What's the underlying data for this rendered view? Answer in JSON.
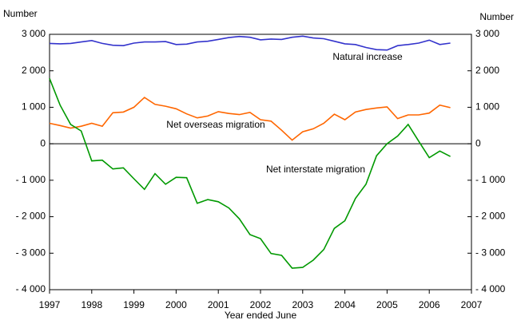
{
  "chart_data": {
    "type": "line",
    "y_label_left": "Number",
    "y_label_right": "Number",
    "x_label": "Year ended June",
    "xlim": [
      1997,
      2007
    ],
    "xticks": [
      1997,
      1998,
      1999,
      2000,
      2001,
      2002,
      2003,
      2004,
      2005,
      2006,
      2007
    ],
    "ylim": [
      -4000,
      3000
    ],
    "yticks": [
      {
        "value": -4000,
        "label": "- 4 000"
      },
      {
        "value": -3000,
        "label": "- 3 000"
      },
      {
        "value": -2000,
        "label": "- 2 000"
      },
      {
        "value": -1000,
        "label": "- 1 000"
      },
      0,
      {
        "value": 1000,
        "label": "1 000"
      },
      {
        "value": 2000,
        "label": "2 000"
      },
      {
        "value": 3000,
        "label": "3 000"
      }
    ],
    "grid": false,
    "x": [
      1997,
      1997.25,
      1997.5,
      1997.75,
      1998,
      1998.25,
      1998.5,
      1998.75,
      1999,
      1999.25,
      1999.5,
      1999.75,
      2000,
      2000.25,
      2000.5,
      2000.75,
      2001,
      2001.25,
      2001.5,
      2001.75,
      2002,
      2002.25,
      2002.5,
      2002.75,
      2003,
      2003.25,
      2003.5,
      2003.75,
      2004,
      2004.25,
      2004.5,
      2004.75,
      2005,
      2005.25,
      2005.5,
      2005.75,
      2006,
      2006.25,
      2006.5
    ],
    "series": [
      {
        "name": "Natural increase",
        "color": "#3333cc",
        "values": [
          2750,
          2740,
          2750,
          2790,
          2830,
          2750,
          2700,
          2690,
          2760,
          2790,
          2790,
          2800,
          2720,
          2730,
          2790,
          2810,
          2860,
          2910,
          2940,
          2920,
          2850,
          2870,
          2860,
          2920,
          2950,
          2900,
          2880,
          2810,
          2740,
          2720,
          2640,
          2580,
          2570,
          2690,
          2720,
          2760,
          2840,
          2720,
          2760
        ]
      },
      {
        "name": "Net overseas migration",
        "color": "#ff6600",
        "values": [
          560,
          500,
          430,
          480,
          560,
          480,
          850,
          870,
          1000,
          1270,
          1080,
          1030,
          960,
          820,
          710,
          760,
          880,
          830,
          800,
          860,
          660,
          620,
          370,
          100,
          330,
          410,
          560,
          810,
          660,
          870,
          940,
          980,
          1010,
          690,
          790,
          790,
          840,
          1060,
          990
        ]
      },
      {
        "name": "Net interstate migration",
        "color": "#009900",
        "values": [
          1790,
          1060,
          530,
          350,
          -470,
          -450,
          -690,
          -660,
          -960,
          -1250,
          -820,
          -1110,
          -920,
          -930,
          -1630,
          -1530,
          -1590,
          -1760,
          -2060,
          -2490,
          -2600,
          -3010,
          -3060,
          -3410,
          -3390,
          -3190,
          -2900,
          -2320,
          -2110,
          -1500,
          -1110,
          -330,
          0,
          210,
          530,
          70,
          -380,
          -200,
          -350
        ]
      }
    ]
  }
}
